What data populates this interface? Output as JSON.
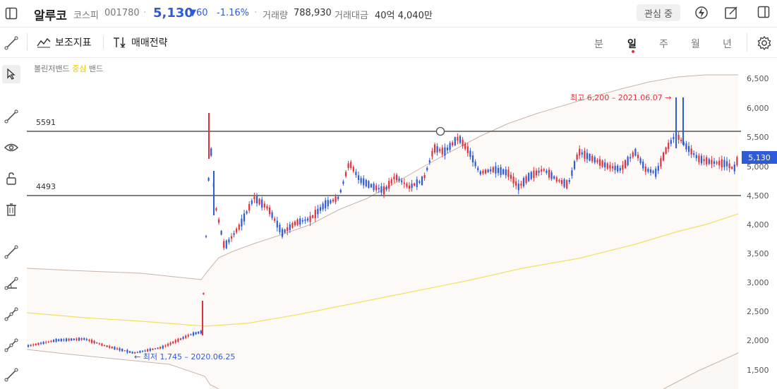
{
  "header": {
    "stock_name": "알루코",
    "market": "코스피",
    "code": "001780",
    "price": "5,130",
    "change": "▼60",
    "change_pct": "-1.16%",
    "volume_label": "거래량",
    "volume": "788,930",
    "amount_label": "거래대금",
    "amount": "40억 4,040만",
    "favorite_label": "관심 중",
    "colors": {
      "down": "#2f5bd8",
      "up": "#e0323c"
    }
  },
  "toolbar": {
    "indicator_label": "보조지표",
    "strategy_label": "매매전략",
    "periods": [
      "분",
      "일",
      "주",
      "월",
      "년"
    ],
    "active_period": "일"
  },
  "chart": {
    "indicator_name": "볼린저밴드",
    "indicator_mid": "중심",
    "indicator_band": "밴드",
    "y_ticks": [
      "6,500",
      "6,000",
      "5,500",
      "5,000",
      "4,500",
      "4,000",
      "3,500",
      "3,000",
      "2,500",
      "2,000",
      "1,500"
    ],
    "current_price_tag": "5,130",
    "line_upper_label": "5591",
    "line_lower_label": "4493",
    "high_note": "최고 6,200 – 2021.06.07 →",
    "low_note": "← 최저 1,745 – 2020.06.25"
  }
}
